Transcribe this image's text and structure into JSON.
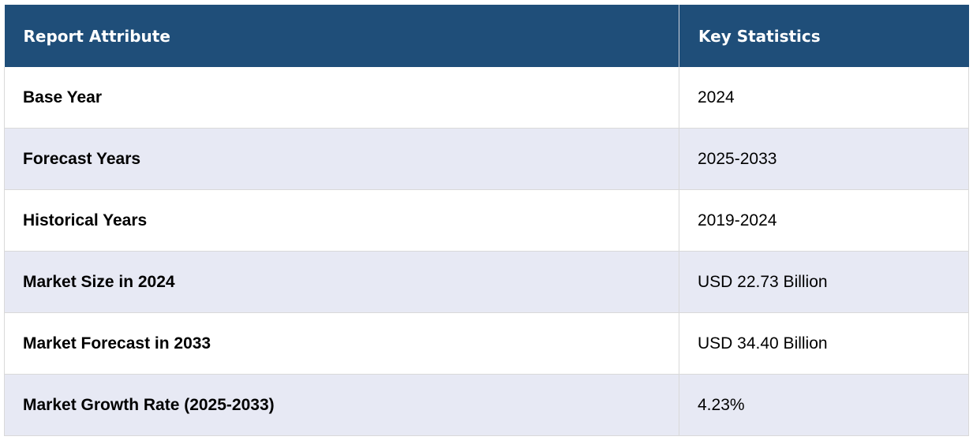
{
  "table": {
    "headers": [
      "Report Attribute",
      "Key Statistics"
    ],
    "rows": [
      {
        "attribute": "Base Year",
        "value": "2024"
      },
      {
        "attribute": "Forecast Years",
        "value": "2025-2033"
      },
      {
        "attribute": "Historical Years",
        "value": "2019-2024"
      },
      {
        "attribute": "Market Size in 2024",
        "value": "USD 22.73 Billion"
      },
      {
        "attribute": "Market Forecast in 2033",
        "value": "USD 34.40 Billion"
      },
      {
        "attribute": "Market Growth Rate (2025-2033)",
        "value": "4.23%"
      }
    ]
  },
  "colors": {
    "header_bg": "#1f4e79",
    "header_text": "#ffffff",
    "row_alt_bg": "#e7e9f4",
    "row_bg": "#ffffff",
    "border": "#d9d9d9"
  }
}
